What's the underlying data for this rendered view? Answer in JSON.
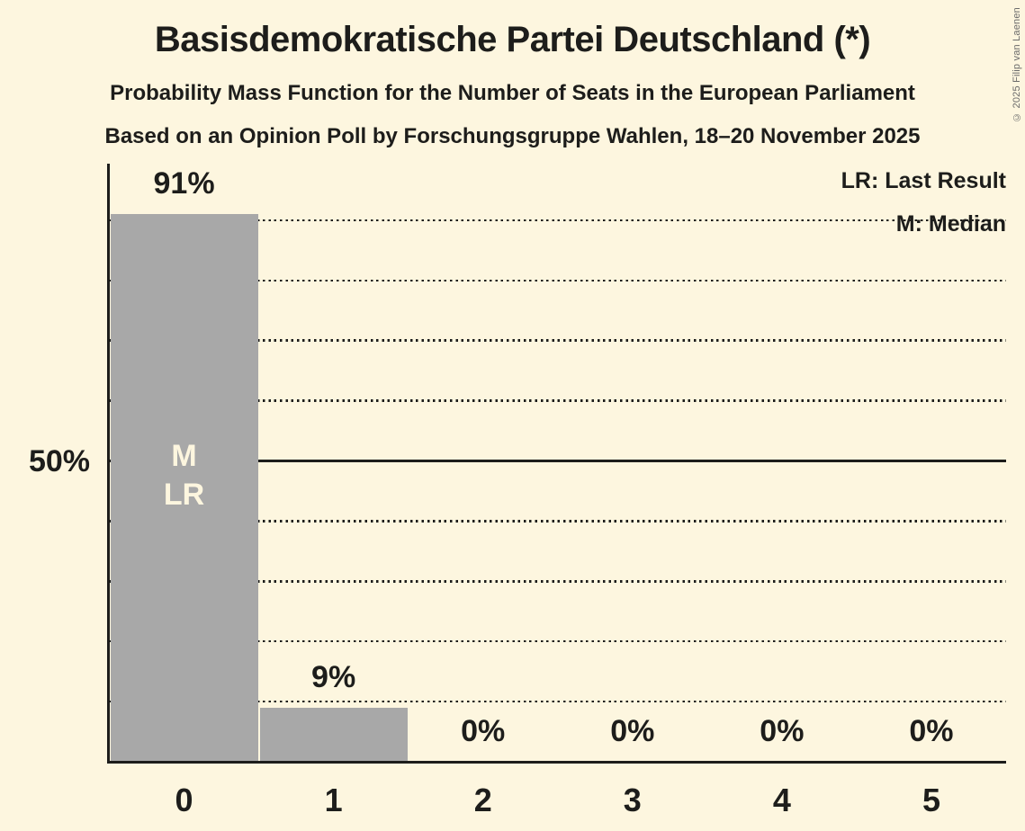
{
  "copyright": "© 2025 Filip van Laenen",
  "chart_data": {
    "type": "bar",
    "title": "Basisdemokratische Partei Deutschland (*)",
    "subtitles": [
      "Probability Mass Function for the Number of Seats in the European Parliament",
      "Based on an Opinion Poll by Forschungsgruppe Wahlen, 18–20 November 2025"
    ],
    "categories": [
      "0",
      "1",
      "2",
      "3",
      "4",
      "5"
    ],
    "values": [
      91,
      9,
      0,
      0,
      0,
      0
    ],
    "bar_labels": [
      "91%",
      "9%",
      "0%",
      "0%",
      "0%",
      "0%"
    ],
    "xlabel": "",
    "ylabel": "",
    "ylim": [
      0,
      100
    ],
    "y_tick": {
      "value": 50,
      "label": "50%"
    },
    "gridlines_dotted": [
      10,
      20,
      30,
      40,
      60,
      70,
      80,
      90
    ],
    "gridline_solid": 50,
    "grid": true,
    "legend_position": "top-right",
    "legend": {
      "lr": "LR: Last Result",
      "m": "M: Median"
    },
    "markers": {
      "bar_index": 0,
      "labels": [
        "M",
        "LR"
      ]
    },
    "colors": {
      "background": "#FDF6DF",
      "bar": "#A8A8A8",
      "text": "#1D1D1B",
      "marker_text": "#FDF6DF",
      "copyright_text": "#6B6B6B"
    }
  }
}
